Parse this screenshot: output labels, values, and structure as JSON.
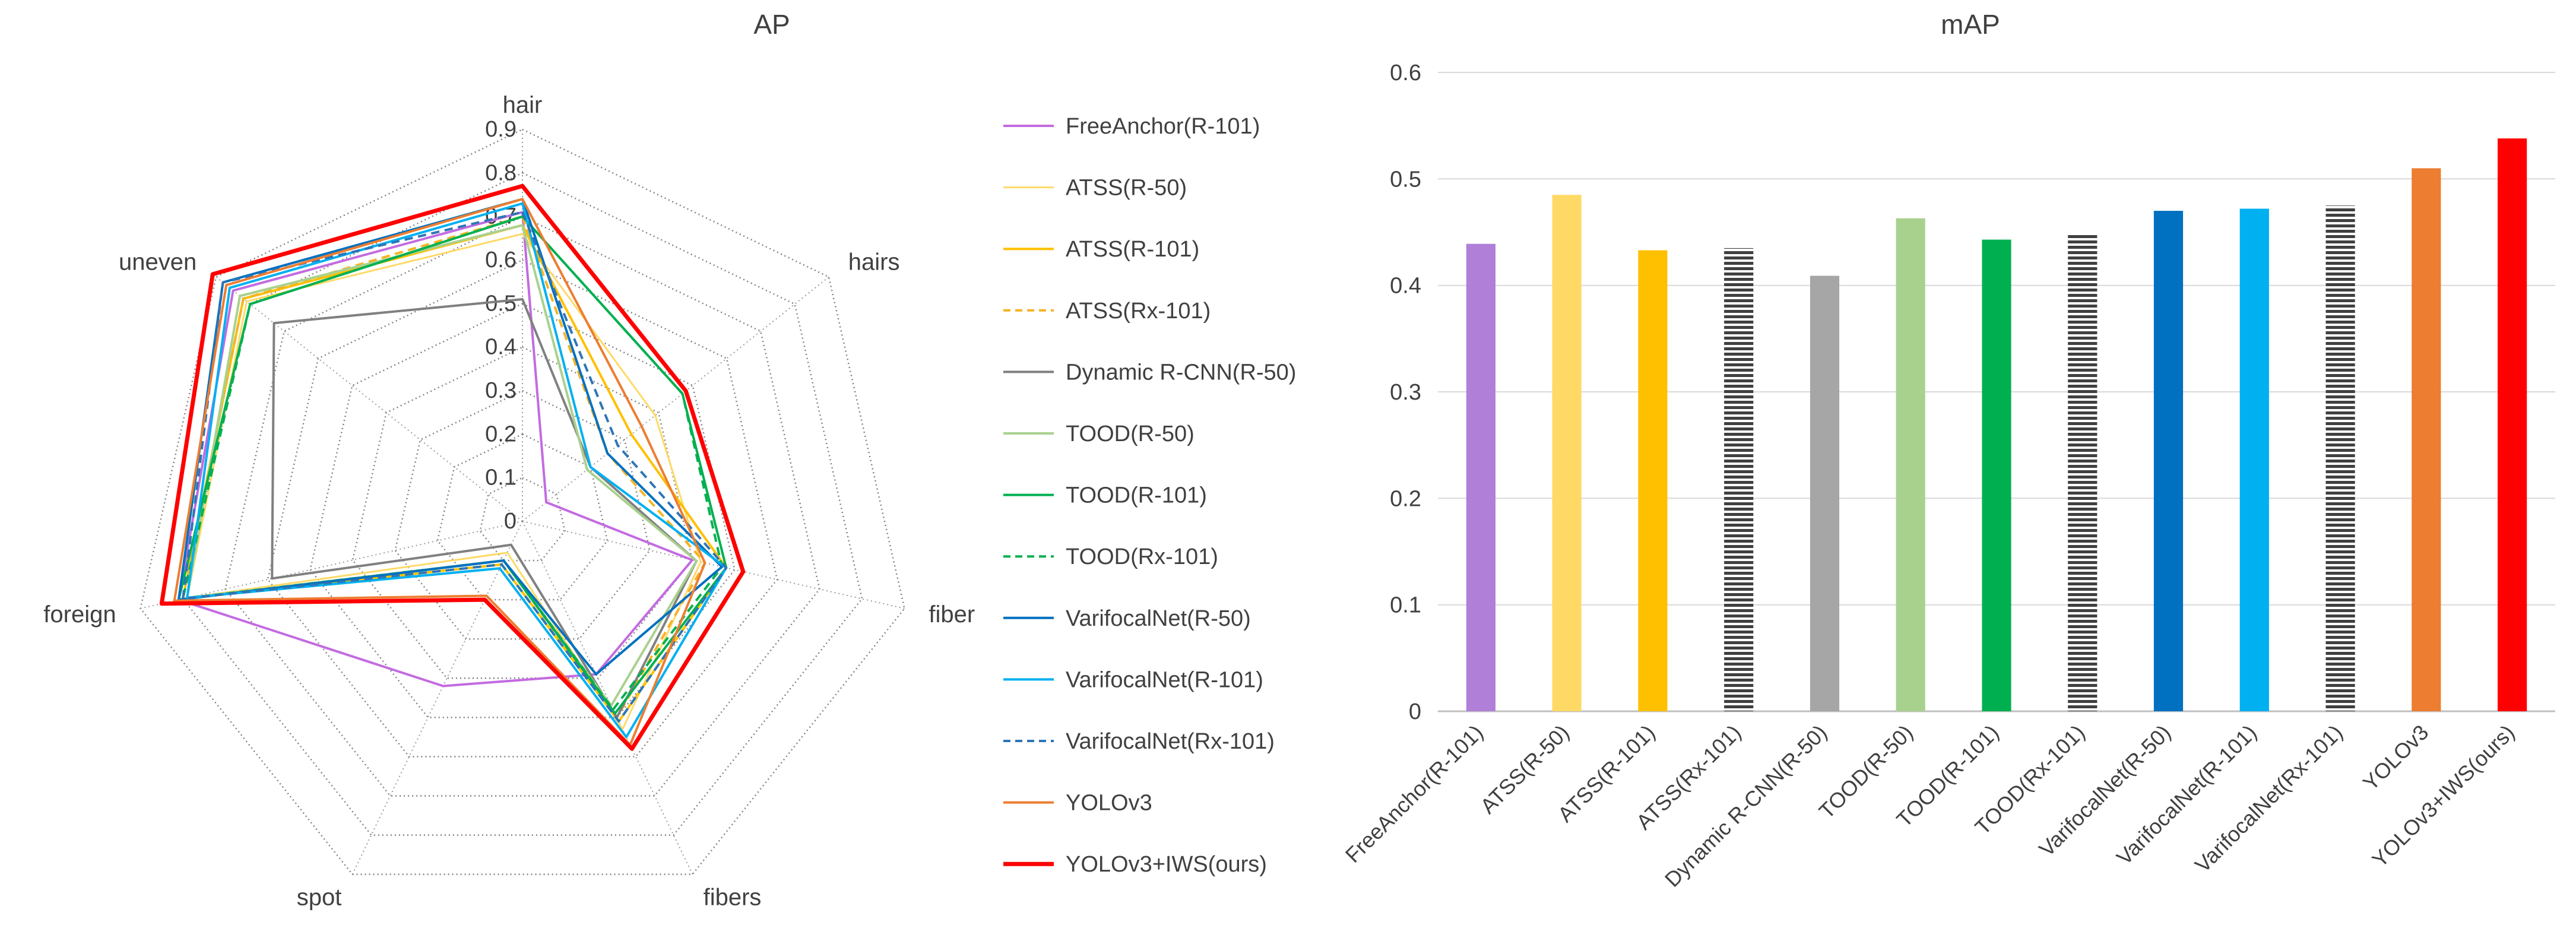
{
  "chart_data": [
    {
      "type": "radar",
      "title": "AP",
      "axes": [
        "hair",
        "hairs",
        "fiber",
        "fibers",
        "spot",
        "foreign",
        "uneven"
      ],
      "rlim": [
        0,
        0.9
      ],
      "rticks": [
        "0",
        "0.1",
        "0.2",
        "0.3",
        "0.4",
        "0.5",
        "0.6",
        "0.7",
        "0.8",
        "0.9"
      ],
      "grid": "dotted",
      "legend_position": "right",
      "series": [
        {
          "name": "FreeAnchor(R-101)",
          "color": "#c36be0",
          "dash": "solid",
          "width": 4,
          "values": [
            0.71,
            0.07,
            0.4,
            0.39,
            0.42,
            0.81,
            0.85
          ]
        },
        {
          "name": "ATSS(R-50)",
          "color": "#ffd966",
          "dash": "solid",
          "width": 3,
          "values": [
            0.66,
            0.39,
            0.42,
            0.53,
            0.08,
            0.79,
            0.81
          ]
        },
        {
          "name": "ATSS(R-101)",
          "color": "#ffc000",
          "dash": "solid",
          "width": 4,
          "values": [
            0.68,
            0.32,
            0.48,
            0.51,
            0.11,
            0.8,
            0.82
          ]
        },
        {
          "name": "ATSS(Rx-101)",
          "color": "#f5b324",
          "dash": "dashed",
          "width": 4,
          "values": [
            0.7,
            0.25,
            0.43,
            0.5,
            0.1,
            0.8,
            0.82
          ]
        },
        {
          "name": "Dynamic R-CNN(R-50)",
          "color": "#808080",
          "dash": "solid",
          "width": 4,
          "values": [
            0.51,
            0.2,
            0.41,
            0.5,
            0.06,
            0.59,
            0.73
          ]
        },
        {
          "name": "TOOD(R-50)",
          "color": "#a9d18e",
          "dash": "solid",
          "width": 4,
          "values": [
            0.68,
            0.19,
            0.41,
            0.47,
            0.1,
            0.79,
            0.83
          ]
        },
        {
          "name": "TOOD(R-101)",
          "color": "#00b050",
          "dash": "solid",
          "width": 4,
          "values": [
            0.7,
            0.47,
            0.48,
            0.49,
            0.1,
            0.81,
            0.8
          ]
        },
        {
          "name": "TOOD(Rx-101)",
          "color": "#00b050",
          "dash": "dashed",
          "width": 4,
          "values": [
            0.7,
            0.47,
            0.47,
            0.48,
            0.1,
            0.8,
            0.8
          ]
        },
        {
          "name": "VarifocalNet(R-50)",
          "color": "#0070c0",
          "dash": "solid",
          "width": 4,
          "values": [
            0.74,
            0.25,
            0.47,
            0.39,
            0.1,
            0.81,
            0.88
          ]
        },
        {
          "name": "VarifocalNet(R-101)",
          "color": "#00b0f0",
          "dash": "solid",
          "width": 4,
          "values": [
            0.73,
            0.2,
            0.48,
            0.55,
            0.12,
            0.79,
            0.86
          ]
        },
        {
          "name": "VarifocalNet(Rx-101)",
          "color": "#2e75b6",
          "dash": "dashed",
          "width": 4,
          "values": [
            0.71,
            0.28,
            0.48,
            0.51,
            0.11,
            0.8,
            0.88
          ]
        },
        {
          "name": "YOLOv3",
          "color": "#ed7d31",
          "dash": "solid",
          "width": 4,
          "values": [
            0.74,
            0.35,
            0.43,
            0.57,
            0.19,
            0.82,
            0.87
          ]
        },
        {
          "name": "YOLOv3+IWS(ours)",
          "color": "#ff0000",
          "dash": "solid",
          "width": 7,
          "values": [
            0.77,
            0.48,
            0.52,
            0.58,
            0.2,
            0.85,
            0.91
          ]
        }
      ]
    },
    {
      "type": "bar",
      "title": "mAP",
      "categories": [
        "FreeAnchor(R-101)",
        "ATSS(R-50)",
        "ATSS(R-101)",
        "ATSS(Rx-101)",
        "Dynamic R-CNN(R-50)",
        "TOOD(R-50)",
        "TOOD(R-101)",
        "TOOD(Rx-101)",
        "VarifocalNet(R-50)",
        "VarifocalNet(R-101)",
        "VarifocalNet(Rx-101)",
        "YOLOv3",
        "YOLOv3+IWS(ours)"
      ],
      "values": [
        0.439,
        0.485,
        0.433,
        0.435,
        0.409,
        0.463,
        0.443,
        0.449,
        0.47,
        0.472,
        0.475,
        0.51,
        0.538
      ],
      "colors": [
        "#b07fd8",
        "#ffd966",
        "#ffc000",
        "#ffc000",
        "#a6a6a6",
        "#a9d18e",
        "#00b050",
        "#00b050",
        "#0070c0",
        "#00b0f0",
        "#2e75b6",
        "#ed7d31",
        "#ff0000"
      ],
      "patterns": [
        "solid",
        "solid",
        "solid",
        "striped",
        "solid",
        "solid",
        "solid",
        "striped",
        "solid",
        "solid",
        "striped",
        "solid",
        "solid"
      ],
      "ylim": [
        0,
        0.6
      ],
      "yticks": [
        "0",
        "0.1",
        "0.2",
        "0.3",
        "0.4",
        "0.5",
        "0.6"
      ],
      "grid": true,
      "xlabel": "",
      "ylabel": ""
    }
  ]
}
